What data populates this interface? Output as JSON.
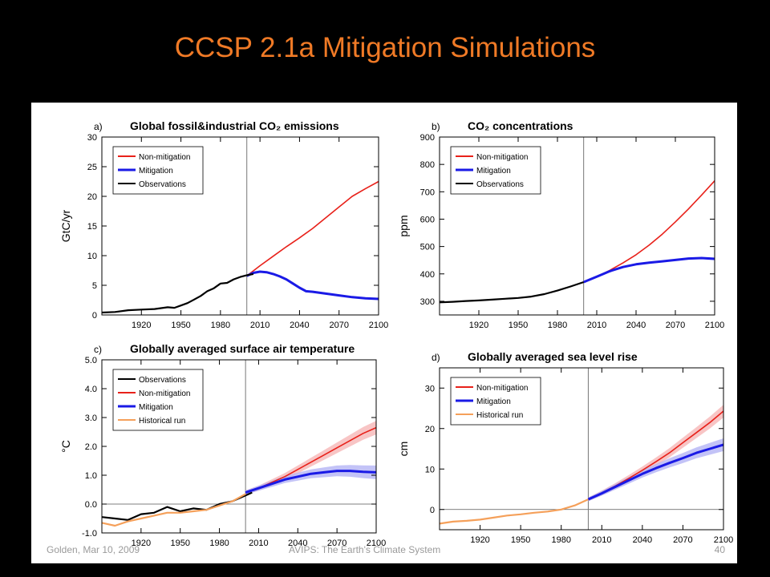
{
  "slide": {
    "title": "CCSP 2.1a Mitigation Simulations",
    "footer_left": "Golden, Mar 10, 2009",
    "footer_center": "AVIPS: The Earth's Climate System",
    "page_number": "40"
  },
  "colors": {
    "title": "#f07a26",
    "non_mitigation": "#e8211a",
    "mitigation": "#1a1ae6",
    "observations": "#000000",
    "historical_run": "#f5a05a",
    "non_mitigation_band": "#f6b7b7",
    "mitigation_band": "#b4b4f5"
  },
  "chart_data": [
    {
      "type": "line",
      "panel_label": "a)",
      "title": "Global fossil&industrial CO₂ emissions",
      "xlabel": "",
      "ylabel": "GtC/yr",
      "xlim": [
        1890,
        2100
      ],
      "ylim": [
        0,
        30
      ],
      "xticks": [
        1920,
        1950,
        1980,
        2010,
        2040,
        2070,
        2100
      ],
      "yticks": [
        0,
        5,
        10,
        15,
        20,
        25,
        30
      ],
      "legend_position": "upper-left",
      "series": [
        {
          "name": "Non-mitigation",
          "color": "#e8211a",
          "x": [
            2000,
            2010,
            2020,
            2030,
            2040,
            2050,
            2060,
            2070,
            2080,
            2090,
            2100
          ],
          "y": [
            6.6,
            8.3,
            9.9,
            11.5,
            13.0,
            14.6,
            16.4,
            18.2,
            20.0,
            21.3,
            22.5
          ]
        },
        {
          "name": "Mitigation",
          "color": "#1a1ae6",
          "x": [
            2000,
            2005,
            2010,
            2015,
            2020,
            2025,
            2030,
            2035,
            2040,
            2045,
            2050,
            2060,
            2070,
            2080,
            2090,
            2100
          ],
          "y": [
            6.6,
            7.1,
            7.3,
            7.2,
            6.9,
            6.5,
            6.0,
            5.3,
            4.6,
            4.0,
            3.9,
            3.6,
            3.3,
            3.0,
            2.8,
            2.7
          ]
        },
        {
          "name": "Observations",
          "color": "#000000",
          "x": [
            1890,
            1900,
            1910,
            1920,
            1930,
            1940,
            1945,
            1950,
            1955,
            1960,
            1965,
            1970,
            1975,
            1980,
            1985,
            1990,
            1995,
            2000,
            2005
          ],
          "y": [
            0.4,
            0.5,
            0.8,
            0.9,
            1.0,
            1.3,
            1.2,
            1.6,
            2.0,
            2.6,
            3.2,
            4.0,
            4.5,
            5.3,
            5.4,
            6.0,
            6.4,
            6.7,
            6.9
          ]
        }
      ]
    },
    {
      "type": "line",
      "panel_label": "b)",
      "title": "CO₂ concentrations",
      "xlabel": "",
      "ylabel": "ppm",
      "xlim": [
        1890,
        2100
      ],
      "ylim": [
        250,
        900
      ],
      "xticks": [
        1920,
        1950,
        1980,
        2010,
        2040,
        2070,
        2100
      ],
      "yticks": [
        300,
        400,
        500,
        600,
        700,
        800,
        900
      ],
      "legend_position": "upper-left",
      "series": [
        {
          "name": "Non-mitigation",
          "color": "#e8211a",
          "x": [
            2000,
            2010,
            2020,
            2030,
            2040,
            2050,
            2060,
            2070,
            2080,
            2090,
            2100
          ],
          "y": [
            370,
            390,
            413,
            440,
            470,
            505,
            545,
            590,
            637,
            688,
            740
          ]
        },
        {
          "name": "Mitigation",
          "color": "#1a1ae6",
          "x": [
            2000,
            2010,
            2020,
            2030,
            2040,
            2050,
            2060,
            2070,
            2080,
            2090,
            2100
          ],
          "y": [
            370,
            390,
            410,
            425,
            435,
            441,
            446,
            451,
            456,
            458,
            455
          ]
        },
        {
          "name": "Observations",
          "color": "#000000",
          "x": [
            1890,
            1900,
            1910,
            1920,
            1930,
            1940,
            1950,
            1960,
            1970,
            1980,
            1990,
            2000
          ],
          "y": [
            296,
            298,
            301,
            303,
            306,
            309,
            312,
            317,
            326,
            339,
            354,
            370
          ]
        }
      ]
    },
    {
      "type": "line",
      "panel_label": "c)",
      "title": "Globally averaged surface air temperature",
      "xlabel": "",
      "ylabel": "°C",
      "xlim": [
        1890,
        2100
      ],
      "ylim": [
        -1.0,
        5.0
      ],
      "xticks": [
        1920,
        1950,
        1980,
        2010,
        2040,
        2070,
        2100
      ],
      "yticks": [
        -1.0,
        0.0,
        1.0,
        2.0,
        3.0,
        4.0,
        5.0
      ],
      "ytick_labels": [
        "-1.0",
        "0.0",
        "1.0",
        "2.0",
        "3.0",
        "4.0",
        "5.0"
      ],
      "legend_position": "upper-left",
      "series": [
        {
          "name": "Observations",
          "color": "#000000",
          "x": [
            1890,
            1900,
            1910,
            1920,
            1930,
            1940,
            1950,
            1960,
            1970,
            1980,
            1990,
            2000,
            2005
          ],
          "y": [
            -0.45,
            -0.5,
            -0.55,
            -0.35,
            -0.3,
            -0.1,
            -0.25,
            -0.15,
            -0.2,
            0.0,
            0.1,
            0.3,
            0.4
          ]
        },
        {
          "name": "Non-mitigation",
          "color": "#e8211a",
          "x": [
            2000,
            2010,
            2020,
            2030,
            2040,
            2050,
            2060,
            2070,
            2080,
            2090,
            2100
          ],
          "y": [
            0.4,
            0.55,
            0.75,
            0.95,
            1.2,
            1.45,
            1.7,
            1.95,
            2.2,
            2.45,
            2.65
          ]
        },
        {
          "name": "Mitigation",
          "color": "#1a1ae6",
          "x": [
            2000,
            2010,
            2020,
            2030,
            2040,
            2050,
            2060,
            2070,
            2080,
            2090,
            2100
          ],
          "y": [
            0.4,
            0.55,
            0.7,
            0.85,
            0.95,
            1.05,
            1.1,
            1.15,
            1.15,
            1.12,
            1.1
          ]
        },
        {
          "name": "Historical run",
          "color": "#f5a05a",
          "x": [
            1890,
            1900,
            1910,
            1920,
            1930,
            1940,
            1950,
            1960,
            1970,
            1980,
            1990,
            2000
          ],
          "y": [
            -0.65,
            -0.75,
            -0.6,
            -0.5,
            -0.4,
            -0.3,
            -0.3,
            -0.25,
            -0.2,
            -0.05,
            0.1,
            0.35
          ]
        }
      ]
    },
    {
      "type": "line",
      "panel_label": "d)",
      "title": "Globally averaged sea level rise",
      "xlabel": "",
      "ylabel": "cm",
      "xlim": [
        1890,
        2100
      ],
      "ylim": [
        -5,
        35
      ],
      "xticks": [
        1920,
        1950,
        1980,
        2010,
        2040,
        2070,
        2100
      ],
      "yticks": [
        0,
        10,
        20,
        30
      ],
      "legend_position": "upper-left",
      "series": [
        {
          "name": "Non-mitigation",
          "color": "#e8211a",
          "x": [
            2000,
            2010,
            2020,
            2030,
            2040,
            2050,
            2060,
            2070,
            2080,
            2090,
            2100
          ],
          "y": [
            2.5,
            4.1,
            5.8,
            7.7,
            9.7,
            11.8,
            14.0,
            16.5,
            19.0,
            21.5,
            24.3
          ]
        },
        {
          "name": "Mitigation",
          "color": "#1a1ae6",
          "x": [
            2000,
            2010,
            2020,
            2030,
            2040,
            2050,
            2060,
            2070,
            2080,
            2090,
            2100
          ],
          "y": [
            2.5,
            4.0,
            5.6,
            7.2,
            8.8,
            10.2,
            11.5,
            12.7,
            14.0,
            15.0,
            16.0
          ]
        },
        {
          "name": "Historical run",
          "color": "#f5a05a",
          "x": [
            1890,
            1900,
            1910,
            1920,
            1930,
            1940,
            1950,
            1960,
            1970,
            1980,
            1990,
            2000
          ],
          "y": [
            -3.5,
            -3.0,
            -2.8,
            -2.5,
            -2.0,
            -1.5,
            -1.2,
            -0.8,
            -0.5,
            0.0,
            1.0,
            2.5
          ]
        }
      ]
    }
  ]
}
